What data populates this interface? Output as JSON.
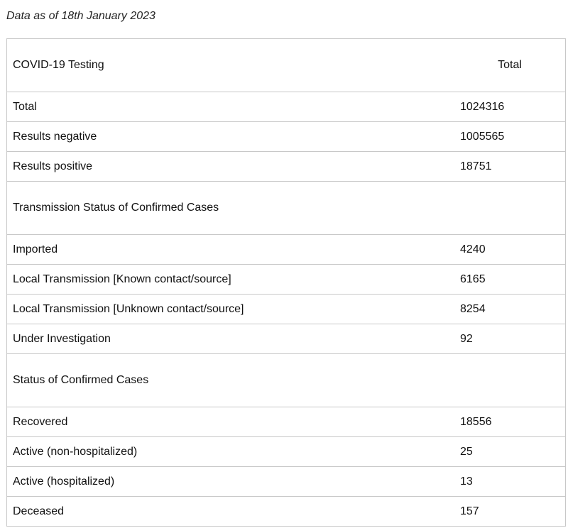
{
  "caption": "Data as of 18th January 2023",
  "table": {
    "header": {
      "label": "COVID-19 Testing",
      "value_header": "Total"
    },
    "testing": [
      {
        "label": "Total",
        "value": "1024316"
      },
      {
        "label": "Results negative",
        "value": "1005565"
      },
      {
        "label": "Results positive",
        "value": "18751"
      }
    ],
    "transmission_title": "Transmission Status of Confirmed Cases",
    "transmission": [
      {
        "label": "Imported",
        "value": "4240"
      },
      {
        "label": "Local Transmission [Known contact/source]",
        "value": "6165"
      },
      {
        "label": "Local Transmission [Unknown contact/source]",
        "value": "8254"
      },
      {
        "label": "Under Investigation",
        "value": "92"
      }
    ],
    "status_title": "Status of Confirmed Cases",
    "status": [
      {
        "label": "Recovered",
        "value": "18556"
      },
      {
        "label": "Active (non-hospitalized)",
        "value": "25"
      },
      {
        "label": "Active (hospitalized)",
        "value": "13"
      },
      {
        "label": "Deceased",
        "value": "157"
      }
    ]
  }
}
